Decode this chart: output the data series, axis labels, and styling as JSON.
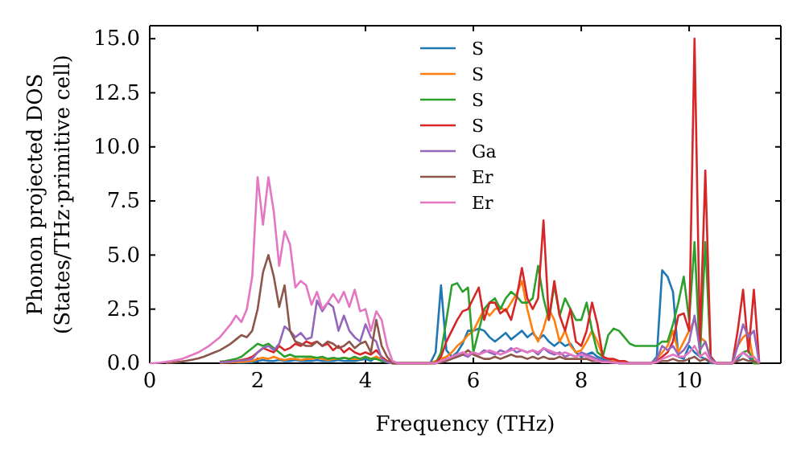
{
  "chart_data": {
    "type": "line",
    "xlabel": "Frequency (THz)",
    "ylabel": "Phonon projected DOS\n(States/THz·primitive cell)",
    "xlim": [
      0,
      11.7
    ],
    "ylim": [
      0,
      15.6
    ],
    "xticks": [
      0,
      2,
      4,
      6,
      8,
      10
    ],
    "yticks": [
      {
        "value": 0,
        "label": "0.0"
      },
      {
        "value": 2.5,
        "label": "2.5"
      },
      {
        "value": 5,
        "label": "5.0"
      },
      {
        "value": 7.5,
        "label": "7.5"
      },
      {
        "value": 10,
        "label": "10.0"
      },
      {
        "value": 12.5,
        "label": "12.5"
      },
      {
        "value": 15,
        "label": "15.0"
      }
    ],
    "grid": false,
    "legend": "top",
    "marker": "none",
    "line_style": "solid",
    "x": [
      0,
      0.1,
      0.2,
      0.3,
      0.4,
      0.5,
      0.6,
      0.7,
      0.8,
      0.9,
      1,
      1.1,
      1.2,
      1.3,
      1.4,
      1.5,
      1.6,
      1.7,
      1.8,
      1.9,
      2,
      2.1,
      2.2,
      2.3,
      2.4,
      2.5,
      2.6,
      2.7,
      2.8,
      2.9,
      3,
      3.1,
      3.2,
      3.3,
      3.4,
      3.5,
      3.6,
      3.7,
      3.8,
      3.9,
      4,
      4.1,
      4.2,
      4.3,
      4.4,
      4.5,
      4.6,
      4.7,
      4.8,
      4.9,
      5,
      5.1,
      5.2,
      5.3,
      5.4,
      5.5,
      5.6,
      5.7,
      5.8,
      5.9,
      6,
      6.1,
      6.2,
      6.3,
      6.4,
      6.5,
      6.6,
      6.7,
      6.8,
      6.9,
      7,
      7.1,
      7.2,
      7.3,
      7.4,
      7.5,
      7.6,
      7.7,
      7.8,
      7.9,
      8,
      8.1,
      8.2,
      8.3,
      8.4,
      8.5,
      8.6,
      8.7,
      8.8,
      8.9,
      9,
      9.1,
      9.2,
      9.3,
      9.4,
      9.5,
      9.6,
      9.7,
      9.8,
      9.9,
      10,
      10.1,
      10.2,
      10.3,
      10.4,
      10.5,
      10.6,
      10.7,
      10.8,
      10.9,
      11,
      11.1,
      11.2,
      11.3
    ],
    "series": [
      {
        "name": "S",
        "color": "#1f77b4",
        "values": [
          null,
          null,
          null,
          null,
          null,
          null,
          null,
          null,
          null,
          null,
          null,
          null,
          null,
          null,
          null,
          null,
          0.03,
          0.03,
          0.04,
          0.05,
          0.1,
          0.15,
          0.1,
          0.1,
          0.15,
          0.1,
          0.1,
          0.15,
          0.1,
          0.1,
          0.1,
          0.15,
          0.1,
          0.1,
          0.1,
          0.15,
          0.1,
          0.1,
          0.1,
          0.15,
          0.2,
          0.1,
          0.3,
          0.1,
          0.05,
          0,
          0,
          0,
          0,
          0,
          0,
          0,
          0,
          0.5,
          3.6,
          0.6,
          0.3,
          0.5,
          0.9,
          1.5,
          1.5,
          1.6,
          1.5,
          1.2,
          1,
          1.2,
          1.4,
          1.1,
          1.3,
          1.5,
          1.2,
          1.4,
          1.1,
          1.3,
          1,
          0.8,
          1,
          0.8,
          0.9,
          0.5,
          0.3,
          0.4,
          0.5,
          0.3,
          0.2,
          0.1,
          0.05,
          0,
          0,
          0,
          0,
          0,
          0,
          0,
          0.3,
          4.3,
          4,
          3.3,
          0.3,
          0.2,
          0.8,
          0.5,
          0.3,
          0.2,
          0,
          0,
          0,
          0,
          0,
          0.2,
          0.5,
          0.3,
          0,
          0
        ]
      },
      {
        "name": "S",
        "color": "#ff7f0e",
        "values": [
          null,
          null,
          null,
          null,
          null,
          null,
          null,
          null,
          null,
          null,
          null,
          null,
          null,
          0.02,
          0.03,
          0.04,
          0.05,
          0.06,
          0.08,
          0.1,
          0.2,
          0.25,
          0.2,
          0.3,
          0.2,
          0.15,
          0.2,
          0.2,
          0.15,
          0.2,
          0.2,
          0.25,
          0.2,
          0.15,
          0.2,
          0.2,
          0.25,
          0.2,
          0.2,
          0.2,
          0.3,
          0.2,
          0.3,
          0.2,
          0.1,
          0,
          0,
          0,
          0,
          0,
          0,
          0,
          0,
          0.1,
          0.2,
          0.3,
          0.5,
          0.8,
          1,
          1.3,
          1.5,
          2,
          2.5,
          2.2,
          2.5,
          2.6,
          2.4,
          2.8,
          3.2,
          3.8,
          2.5,
          1.5,
          1,
          1.6,
          2.5,
          2,
          1,
          1.5,
          0.8,
          0.5,
          0.6,
          1,
          1.5,
          1,
          0.3,
          0.2,
          0.1,
          0.1,
          0,
          0,
          0,
          0,
          0,
          0,
          0.2,
          0.5,
          0.8,
          1.5,
          0.5,
          1,
          1.5,
          2,
          1.2,
          1,
          0.2,
          0,
          0,
          0,
          0,
          0.8,
          1.2,
          1.4,
          0,
          0
        ]
      },
      {
        "name": "S",
        "color": "#2ca02c",
        "values": [
          null,
          null,
          null,
          null,
          null,
          null,
          null,
          null,
          null,
          null,
          null,
          null,
          null,
          0.07,
          0.1,
          0.15,
          0.2,
          0.3,
          0.5,
          0.7,
          0.9,
          0.8,
          0.9,
          0.7,
          0.5,
          0.3,
          0.4,
          0.3,
          0.3,
          0.3,
          0.3,
          0.25,
          0.3,
          0.2,
          0.25,
          0.2,
          0.25,
          0.2,
          0.3,
          0.2,
          0.3,
          0.2,
          0.2,
          0.1,
          0.05,
          0,
          0,
          0,
          0,
          0,
          0,
          0,
          0,
          0,
          0.5,
          2,
          3.6,
          3.7,
          3.3,
          3.5,
          0.5,
          1.5,
          2.5,
          2.8,
          3,
          2.5,
          3,
          3.3,
          3.1,
          2.8,
          2.8,
          3,
          4.5,
          3,
          2,
          3.6,
          2.2,
          3,
          2.5,
          2,
          2,
          2.8,
          1.5,
          0.5,
          0.3,
          1.3,
          1.6,
          1.5,
          1.2,
          0.9,
          0.8,
          0.8,
          0.8,
          0.8,
          0.8,
          1,
          1,
          1.8,
          2.8,
          4,
          2,
          5.6,
          0.3,
          5.6,
          0.3,
          0,
          0,
          0,
          0,
          0.3,
          0.5,
          0.6,
          0,
          0
        ]
      },
      {
        "name": "S",
        "color": "#d62728",
        "values": [
          null,
          null,
          null,
          null,
          null,
          null,
          null,
          null,
          null,
          null,
          null,
          null,
          null,
          0.05,
          0.06,
          0.08,
          0.1,
          0.15,
          0.2,
          0.3,
          0.5,
          0.7,
          0.6,
          0.5,
          0.8,
          0.6,
          0.7,
          0.9,
          0.8,
          1,
          0.9,
          1,
          0.8,
          0.9,
          0.6,
          0.8,
          0.5,
          0.7,
          0.5,
          0.4,
          0.5,
          0.4,
          0.6,
          0.3,
          0.1,
          0,
          0,
          0,
          0,
          0,
          0,
          0,
          0,
          0,
          0.3,
          1,
          1.5,
          2,
          2.4,
          2.5,
          3,
          3.5,
          2,
          2.8,
          2.8,
          2.3,
          2.5,
          2,
          3,
          4.4,
          3,
          2.5,
          3,
          6.6,
          2,
          3.8,
          2.2,
          1.5,
          2.5,
          1,
          0.8,
          1.5,
          2.8,
          1.8,
          0.3,
          0.2,
          0.2,
          0.1,
          0.1,
          0,
          0,
          0,
          0,
          0,
          0.1,
          0.3,
          0.5,
          1,
          2.2,
          2.3,
          1.5,
          15,
          1,
          8.9,
          0.3,
          0,
          0,
          0,
          0,
          1.5,
          3.4,
          0.5,
          3.4,
          0
        ]
      },
      {
        "name": "Ga",
        "color": "#9467bd",
        "values": [
          null,
          null,
          null,
          null,
          null,
          null,
          null,
          null,
          null,
          null,
          null,
          null,
          null,
          0.04,
          0.05,
          0.07,
          0.1,
          0.12,
          0.15,
          0.2,
          0.5,
          0.7,
          0.8,
          0.6,
          0.9,
          1.7,
          1.5,
          1.2,
          1.4,
          1.1,
          1.2,
          2.9,
          2.4,
          2.8,
          2.6,
          1.5,
          2.2,
          1.5,
          1.2,
          1,
          1.8,
          1.2,
          1,
          0.2,
          0.05,
          0,
          0,
          0,
          0,
          0,
          0,
          0,
          0,
          0,
          0.1,
          0.2,
          0.3,
          0.3,
          0.4,
          0.3,
          0.5,
          0.4,
          0.6,
          0.5,
          0.4,
          0.6,
          0.5,
          0.7,
          0.5,
          0.6,
          0.5,
          0.6,
          0.4,
          0.7,
          0.5,
          0.4,
          0.5,
          0.3,
          0.4,
          0.3,
          0.5,
          0.4,
          0.3,
          0.2,
          0.1,
          0.1,
          0.05,
          0,
          0,
          0,
          0,
          0,
          0,
          0,
          0.2,
          0.8,
          0.6,
          0.8,
          0.4,
          0.6,
          1,
          2.2,
          0.6,
          1,
          0.2,
          0,
          0,
          0,
          0,
          0.8,
          1.8,
          1.2,
          1.5,
          0
        ]
      },
      {
        "name": "Er",
        "color": "#8c564b",
        "values": [
          null,
          null,
          null,
          0.01,
          0.02,
          0.05,
          0.08,
          0.12,
          0.17,
          0.22,
          0.3,
          0.4,
          0.5,
          0.6,
          0.75,
          0.9,
          1.1,
          1.3,
          1.2,
          1.5,
          2.5,
          4.2,
          5,
          4,
          2.6,
          3.6,
          1.5,
          1,
          0.9,
          0.8,
          0.8,
          1,
          0.8,
          1,
          0.9,
          0.7,
          0.8,
          1,
          0.7,
          0.9,
          1,
          0.5,
          2,
          0.8,
          0.3,
          0,
          0,
          0,
          0,
          0,
          0,
          0,
          0,
          0,
          0.05,
          0.1,
          0.2,
          0.3,
          0.4,
          0.6,
          0.4,
          0.3,
          0.2,
          0.2,
          0.3,
          0.2,
          0.3,
          0.4,
          0.3,
          0.3,
          0.2,
          0.3,
          0.2,
          0.3,
          0.2,
          0.2,
          0.3,
          0.2,
          0.2,
          0.2,
          0.2,
          0.2,
          0.1,
          0.1,
          0.05,
          0.05,
          0.03,
          0,
          0,
          0,
          0,
          0,
          0,
          0,
          0.05,
          0.1,
          0.1,
          0.2,
          0.1,
          0.1,
          0.2,
          0.3,
          0.1,
          0.2,
          0.05,
          0,
          0,
          0,
          0,
          0.1,
          0.2,
          0.1,
          0.1,
          0
        ]
      },
      {
        "name": "Er",
        "color": "#e377c2",
        "values": [
          0,
          0.01,
          0.03,
          0.06,
          0.1,
          0.15,
          0.2,
          0.3,
          0.4,
          0.5,
          0.65,
          0.8,
          1,
          1.2,
          1.5,
          1.8,
          2.2,
          1.9,
          2.5,
          4,
          8.6,
          6.4,
          8.6,
          7,
          4.5,
          6.1,
          5.5,
          3.5,
          3.8,
          3.6,
          2.7,
          3.3,
          2.5,
          2.8,
          3.2,
          2.8,
          3.3,
          2.6,
          3.4,
          2.4,
          2.5,
          1.5,
          2.4,
          2,
          0.8,
          0.1,
          0,
          0,
          0,
          0,
          0,
          0,
          0,
          0,
          0.1,
          0.2,
          0.3,
          0.4,
          0.5,
          0.4,
          0.5,
          0.4,
          0.5,
          0.6,
          0.5,
          0.4,
          0.5,
          0.6,
          0.7,
          0.6,
          0.5,
          0.6,
          0.5,
          0.7,
          0.6,
          0.5,
          0.4,
          0.5,
          0.4,
          0.3,
          0.4,
          0.3,
          0.2,
          0.1,
          0.05,
          0.05,
          0.03,
          0,
          0,
          0,
          0,
          0,
          0,
          0,
          0.05,
          0.2,
          0.3,
          0.4,
          0.3,
          0.3,
          0.5,
          0.8,
          0.3,
          0.5,
          0.1,
          0,
          0,
          0,
          0,
          0.3,
          0.5,
          0.3,
          0.3,
          0
        ]
      }
    ]
  }
}
